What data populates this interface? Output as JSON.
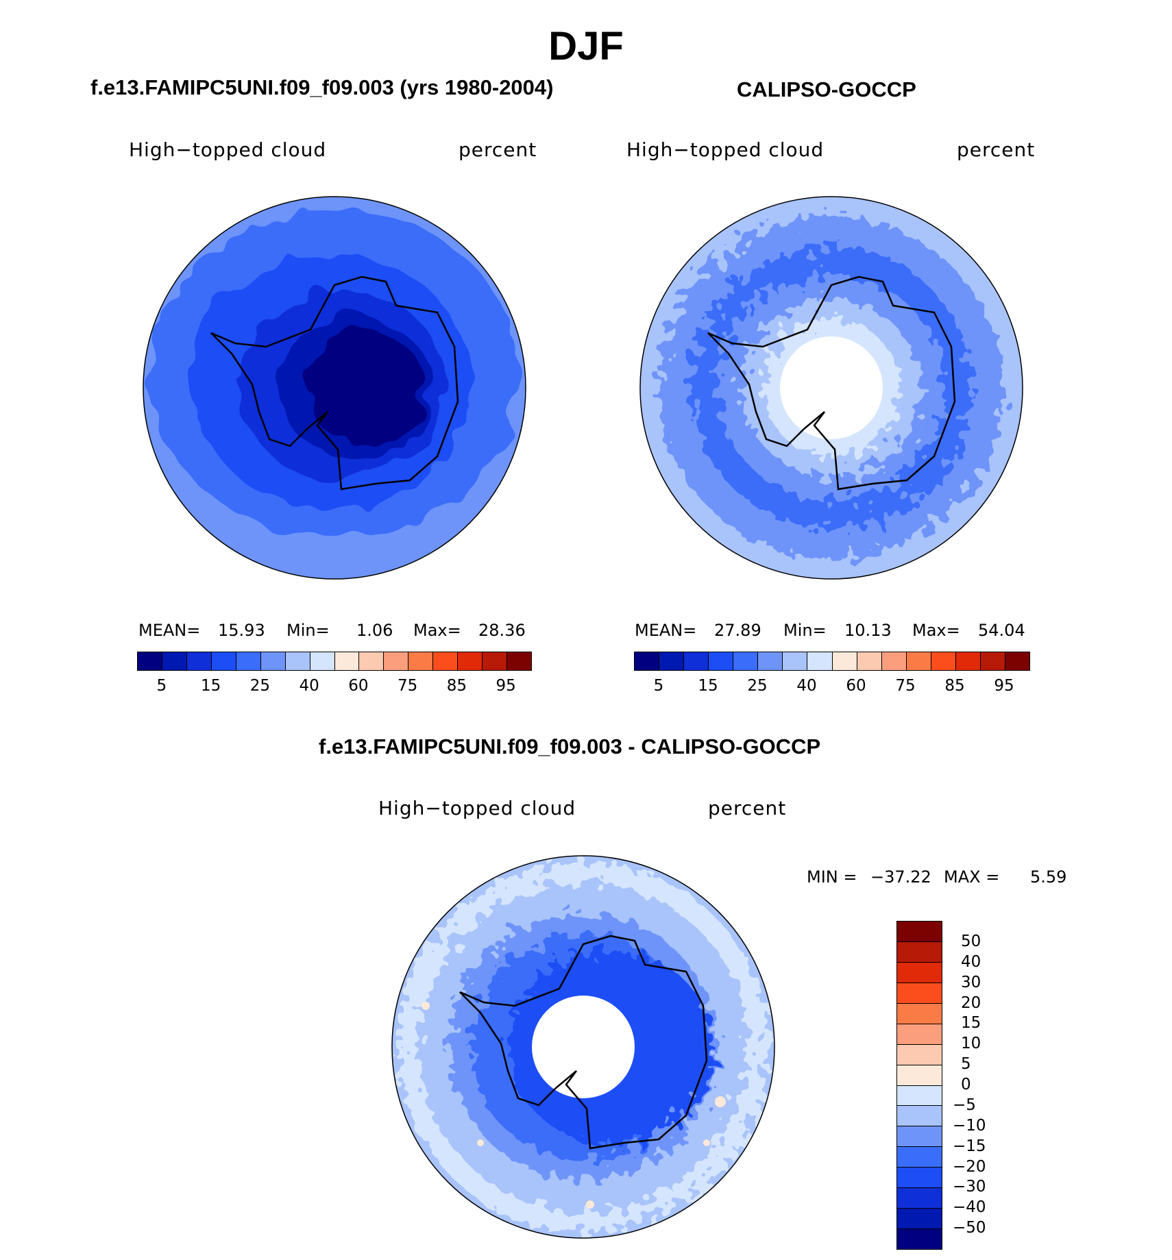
{
  "figure": {
    "title": "DJF"
  },
  "panels": {
    "model": {
      "title": "f.e13.FAMIPC5UNI.f09_f09.003 (yrs 1980-2004)",
      "left_label": "High−topped cloud",
      "right_label": "percent",
      "stats": {
        "mean_label": "MEAN=",
        "mean": "15.93",
        "min_label": "Min=",
        "min": "1.06",
        "max_label": "Max=",
        "max": "28.36"
      }
    },
    "obs": {
      "title": "CALIPSO-GOCCP",
      "left_label": "High−topped cloud",
      "right_label": "percent",
      "stats": {
        "mean_label": "MEAN=",
        "mean": "27.89",
        "min_label": "Min=",
        "min": "10.13",
        "max_label": "Max=",
        "max": "54.04"
      }
    },
    "diff": {
      "title": "f.e13.FAMIPC5UNI.f09_f09.003 - CALIPSO-GOCCP",
      "left_label": "High−topped cloud",
      "right_label": "percent",
      "stats": {
        "min_label": "MIN =",
        "min": "−37.22",
        "max_label": "MAX =",
        "max": "5.59"
      }
    }
  },
  "colorbars": {
    "abs": {
      "colors": [
        "#000080",
        "#0019b0",
        "#0f2fd8",
        "#1d4ef5",
        "#3a6df9",
        "#6e94f9",
        "#a9c3fb",
        "#d4e5fd",
        "#fde9d9",
        "#fccab0",
        "#fb9e7e",
        "#fb7b47",
        "#fb4e1c",
        "#e12a08",
        "#b71a06",
        "#7c0202"
      ],
      "ticks": [
        "5",
        "15",
        "25",
        "40",
        "60",
        "75",
        "85",
        "95"
      ]
    },
    "diff": {
      "colors": [
        "#7c0202",
        "#b71a06",
        "#e12a08",
        "#fb4e1c",
        "#fb7b47",
        "#fb9e7e",
        "#fccab0",
        "#fde9d9",
        "#d4e5fd",
        "#a9c3fb",
        "#6e94f9",
        "#3a6df9",
        "#1d4ef5",
        "#0f2fd8",
        "#0019b0",
        "#000080"
      ],
      "ticks": [
        "50",
        "40",
        "30",
        "20",
        "15",
        "10",
        "5",
        "0",
        "−5",
        "−10",
        "−15",
        "−20",
        "−30",
        "−40",
        "−50"
      ]
    }
  }
}
